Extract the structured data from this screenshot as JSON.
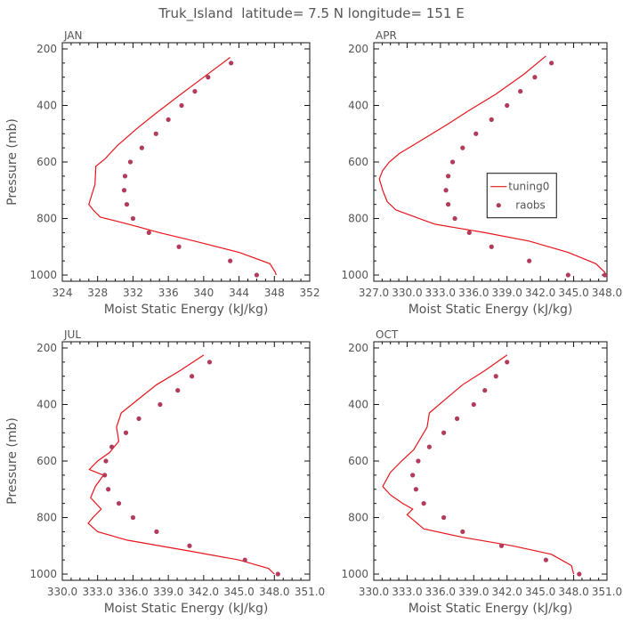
{
  "figure_title": "Truk_Island  latitude= 7.5 N longitude= 151 E",
  "colors": {
    "model": "#e8141c",
    "obs": "#b23a5a",
    "axis": "#111111",
    "text": "#555555"
  },
  "legend": {
    "model_label": "tuning0",
    "obs_label": "raobs"
  },
  "chart_data": [
    {
      "type": "line",
      "title": "JAN",
      "xlabel": "Moist Static Energy (kJ/kg)",
      "ylabel": "Pressure (mb)",
      "xlim": [
        324,
        352
      ],
      "ylim": [
        1000,
        200
      ],
      "xticks": [
        324,
        328,
        332,
        336,
        340,
        344,
        348,
        352
      ],
      "xtick_labels": [
        "324",
        "328",
        "332",
        "336",
        "340",
        "344",
        "348",
        "352"
      ],
      "yticks": [
        200,
        400,
        600,
        800,
        1000
      ],
      "ytick_labels": [
        "200",
        "400",
        "600",
        "800",
        "1000"
      ],
      "series": [
        {
          "name": "tuning0",
          "kind": "line",
          "x": [
            343.0,
            340.0,
            337.0,
            334.5,
            332.5,
            330.3,
            328.8,
            327.8,
            327.7,
            327.0,
            327.5,
            328.3,
            331.5,
            335.0,
            339.0,
            344.0,
            347.5,
            348.1,
            348.2
          ],
          "y": [
            230,
            300,
            370,
            430,
            480,
            540,
            590,
            615,
            680,
            750,
            770,
            795,
            820,
            850,
            880,
            920,
            960,
            990,
            1000
          ]
        },
        {
          "name": "raobs",
          "kind": "scatter",
          "x": [
            343.1,
            340.5,
            339.0,
            337.5,
            336.0,
            334.6,
            333.0,
            331.7,
            331.1,
            331.0,
            331.3,
            332.0,
            333.8,
            337.2,
            343.0,
            346.0
          ],
          "y": [
            250,
            300,
            350,
            400,
            450,
            500,
            550,
            600,
            650,
            700,
            750,
            800,
            850,
            900,
            950,
            1000
          ]
        }
      ]
    },
    {
      "type": "line",
      "title": "APR",
      "xlabel": "Moist Static Energy (kJ/kg)",
      "ylabel": "",
      "xlim": [
        327.0,
        348.0
      ],
      "ylim": [
        1000,
        200
      ],
      "xticks": [
        327.0,
        330.0,
        333.0,
        336.0,
        339.0,
        342.0,
        345.0,
        348.0
      ],
      "xtick_labels": [
        "327.0",
        "330.0",
        "333.0",
        "336.0",
        "339.0",
        "342.0",
        "345.0",
        "348.0"
      ],
      "yticks": [
        200,
        400,
        600,
        800,
        1000
      ],
      "ytick_labels": [
        "200",
        "400",
        "600",
        "800",
        "1000"
      ],
      "series": [
        {
          "name": "tuning0",
          "kind": "line",
          "x": [
            342.5,
            340.5,
            338.0,
            335.5,
            333.5,
            331.0,
            329.3,
            328.4,
            327.8,
            327.5,
            327.8,
            328.2,
            329.0,
            332.5,
            337.0,
            341.0,
            344.5,
            347.0,
            347.8,
            347.9
          ],
          "y": [
            225,
            290,
            360,
            420,
            470,
            530,
            570,
            600,
            630,
            660,
            700,
            740,
            770,
            820,
            850,
            880,
            920,
            960,
            990,
            1000
          ]
        },
        {
          "name": "raobs",
          "kind": "scatter",
          "x": [
            343.0,
            341.5,
            340.2,
            339.0,
            337.6,
            336.2,
            335.0,
            334.1,
            333.7,
            333.5,
            333.7,
            334.3,
            335.6,
            337.6,
            341.0,
            344.5,
            347.8
          ],
          "y": [
            250,
            300,
            350,
            400,
            450,
            500,
            550,
            600,
            650,
            700,
            750,
            800,
            850,
            900,
            950,
            1000,
            1000
          ]
        }
      ]
    },
    {
      "type": "line",
      "title": "JUL",
      "xlabel": "Moist Static Energy (kJ/kg)",
      "ylabel": "Pressure (mb)",
      "xlim": [
        330.0,
        351.0
      ],
      "ylim": [
        1000,
        200
      ],
      "xticks": [
        330.0,
        333.0,
        336.0,
        339.0,
        342.0,
        345.0,
        348.0,
        351.0
      ],
      "xtick_labels": [
        "330.0",
        "333.0",
        "336.0",
        "339.0",
        "342.0",
        "345.0",
        "348.0",
        "351.0"
      ],
      "yticks": [
        200,
        400,
        600,
        800,
        1000
      ],
      "ytick_labels": [
        "200",
        "400",
        "600",
        "800",
        "1000"
      ],
      "series": [
        {
          "name": "tuning0",
          "kind": "line",
          "x": [
            342.0,
            340.0,
            338.0,
            336.5,
            335.0,
            334.6,
            334.8,
            334.0,
            333.0,
            332.3,
            333.5,
            332.8,
            332.4,
            333.3,
            332.6,
            332.2,
            333.0,
            335.5,
            341.0,
            345.0,
            347.5,
            348.0
          ],
          "y": [
            225,
            280,
            330,
            380,
            430,
            480,
            530,
            570,
            600,
            630,
            650,
            690,
            730,
            770,
            800,
            820,
            850,
            880,
            920,
            950,
            980,
            1000
          ]
        },
        {
          "name": "raobs",
          "kind": "scatter",
          "x": [
            342.5,
            341.0,
            339.8,
            338.3,
            336.5,
            335.4,
            334.2,
            333.7,
            333.6,
            333.9,
            334.8,
            336.0,
            338.0,
            340.8,
            345.5,
            348.3
          ],
          "y": [
            250,
            300,
            350,
            400,
            450,
            500,
            550,
            600,
            650,
            700,
            750,
            800,
            850,
            900,
            950,
            1000
          ]
        }
      ]
    },
    {
      "type": "line",
      "title": "OCT",
      "xlabel": "Moist Static Energy (kJ/kg)",
      "ylabel": "",
      "xlim": [
        330.0,
        351.0
      ],
      "ylim": [
        1000,
        200
      ],
      "xticks": [
        330.0,
        333.0,
        336.0,
        339.0,
        342.0,
        345.0,
        348.0,
        351.0
      ],
      "xtick_labels": [
        "330.0",
        "333.0",
        "336.0",
        "339.0",
        "342.0",
        "345.0",
        "348.0",
        "351.0"
      ],
      "yticks": [
        200,
        400,
        600,
        800,
        1000
      ],
      "ytick_labels": [
        "200",
        "400",
        "600",
        "800",
        "1000"
      ],
      "series": [
        {
          "name": "tuning0",
          "kind": "line",
          "x": [
            342.0,
            340.0,
            338.0,
            336.5,
            335.0,
            334.8,
            334.2,
            333.6,
            332.5,
            331.5,
            330.8,
            331.5,
            332.6,
            333.5,
            333.0,
            333.6,
            334.5,
            338.0,
            342.5,
            346.0,
            347.8,
            348.0
          ],
          "y": [
            225,
            280,
            330,
            380,
            430,
            480,
            520,
            560,
            600,
            640,
            690,
            720,
            750,
            770,
            790,
            810,
            840,
            870,
            900,
            930,
            970,
            1000
          ]
        },
        {
          "name": "raobs",
          "kind": "scatter",
          "x": [
            342.0,
            341.0,
            340.0,
            339.0,
            337.5,
            336.3,
            335.0,
            334.0,
            333.5,
            333.8,
            334.5,
            336.3,
            338.0,
            341.5,
            345.5,
            348.5
          ],
          "y": [
            250,
            300,
            350,
            400,
            450,
            500,
            550,
            600,
            650,
            700,
            750,
            800,
            850,
            900,
            950,
            1000
          ]
        }
      ]
    }
  ]
}
